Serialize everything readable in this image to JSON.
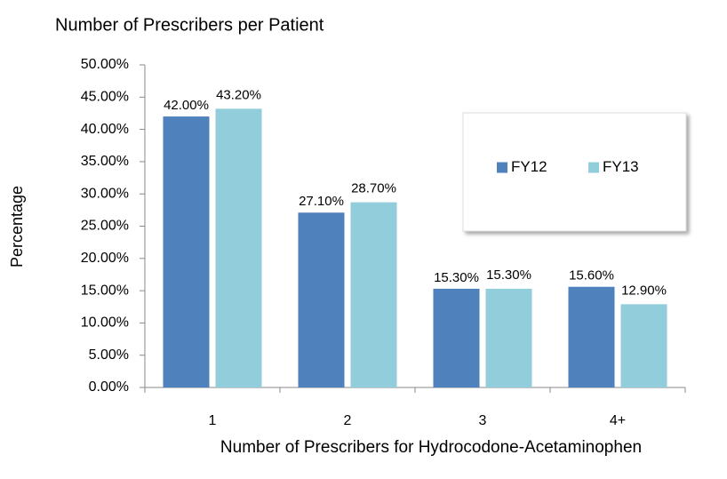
{
  "chart_data": {
    "type": "bar",
    "title": "Number of Prescribers per Patient",
    "x_label": "Number of Prescribers for Hydrocodone-Acetaminophen",
    "y_label": "Percentage",
    "categories": [
      "1",
      "2",
      "3",
      "4+"
    ],
    "series": [
      {
        "name": "FY12",
        "color": "#4f81bd",
        "values": [
          42.0,
          27.1,
          15.3,
          15.6
        ],
        "value_labels": [
          "42.00%",
          "27.10%",
          "15.30%",
          "15.60%"
        ]
      },
      {
        "name": "FY13",
        "color": "#92cddc",
        "values": [
          43.2,
          28.7,
          15.3,
          12.9
        ],
        "value_labels": [
          "43.20%",
          "28.70%",
          "15.30%",
          "12.90%"
        ]
      }
    ],
    "ylim": [
      0,
      50
    ],
    "yticks": [
      {
        "value": 0,
        "label": "0.00%"
      },
      {
        "value": 5,
        "label": "5.00%"
      },
      {
        "value": 10,
        "label": "10.00%"
      },
      {
        "value": 15,
        "label": "15.00%"
      },
      {
        "value": 20,
        "label": "20.00%"
      },
      {
        "value": 25,
        "label": "25.00%"
      },
      {
        "value": 30,
        "label": "30.00%"
      },
      {
        "value": 35,
        "label": "35.00%"
      },
      {
        "value": 40,
        "label": "40.00%"
      },
      {
        "value": 45,
        "label": "45.00%"
      },
      {
        "value": 50,
        "label": "50.00%"
      }
    ],
    "legend": "upper right",
    "grid": false
  }
}
